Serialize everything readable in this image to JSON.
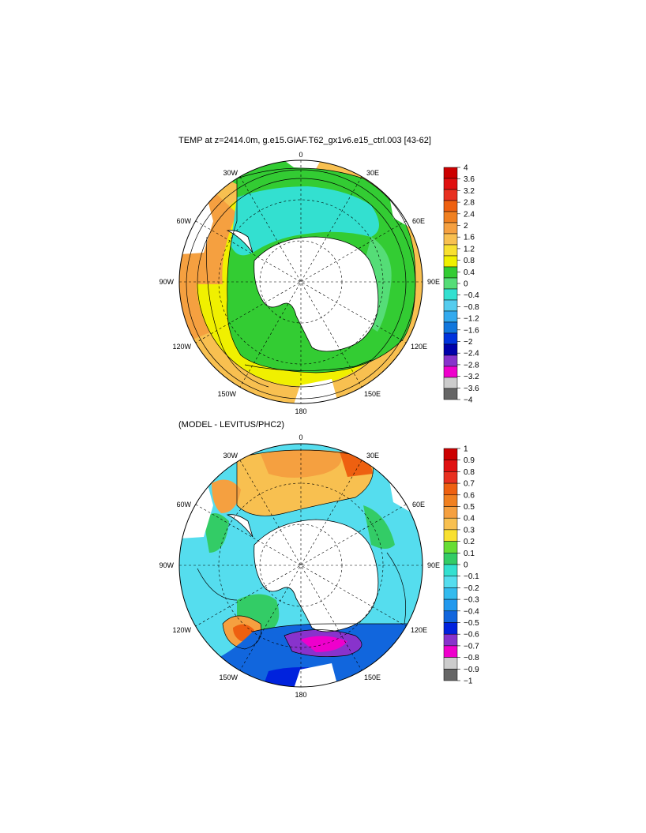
{
  "panels": [
    {
      "title": "TEMP at z=2414.0m, g.e15.GIAF.T62_gx1v6.e15_ctrl.003 [43-62]",
      "lon_labels": [
        "0",
        "30E",
        "60E",
        "90E",
        "120E",
        "150E",
        "180",
        "150W",
        "120W",
        "90W",
        "60W",
        "30W"
      ],
      "colorbar": {
        "levels": [
          "4",
          "3.6",
          "3.2",
          "2.8",
          "2.4",
          "2",
          "1.6",
          "1.2",
          "0.8",
          "0.4",
          "0",
          "−0.4",
          "−0.8",
          "−1.2",
          "−1.6",
          "−2",
          "−2.4",
          "−2.8",
          "−3.2",
          "−3.6",
          "−4"
        ],
        "colors": [
          "#cc0000",
          "#e01010",
          "#e83020",
          "#ee6010",
          "#f08020",
          "#f5a040",
          "#f8c050",
          "#f8e030",
          "#f0f000",
          "#33cc33",
          "#55dd77",
          "#33e0d0",
          "#55ccee",
          "#33aaee",
          "#1177dd",
          "#0033dd",
          "#0000aa",
          "#8833cc",
          "#ee00cc",
          "#cccccc",
          "#666666"
        ]
      }
    },
    {
      "title": "(MODEL - LEVITUS/PHC2)",
      "lon_labels": [
        "0",
        "30E",
        "60E",
        "90E",
        "120E",
        "150E",
        "180",
        "150W",
        "120W",
        "90W",
        "60W",
        "30W"
      ],
      "colorbar": {
        "levels": [
          "1",
          "0.9",
          "0.8",
          "0.7",
          "0.6",
          "0.5",
          "0.4",
          "0.3",
          "0.2",
          "0.1",
          "0",
          "−0.1",
          "−0.2",
          "−0.3",
          "−0.4",
          "−0.5",
          "−0.6",
          "−0.7",
          "−0.8",
          "−0.9",
          "−1"
        ],
        "colors": [
          "#cc0000",
          "#e01010",
          "#e83020",
          "#ee6010",
          "#f08020",
          "#f5a040",
          "#f8c050",
          "#f8e030",
          "#66dd33",
          "#33cc66",
          "#33e0d0",
          "#55ddee",
          "#33bbee",
          "#2299ee",
          "#1166dd",
          "#0022dd",
          "#8833cc",
          "#ee00cc",
          "#cccccc",
          "#666666"
        ]
      }
    }
  ],
  "colors": {
    "land": "#ffffff",
    "coast": "#000000",
    "grid": "#000000"
  }
}
